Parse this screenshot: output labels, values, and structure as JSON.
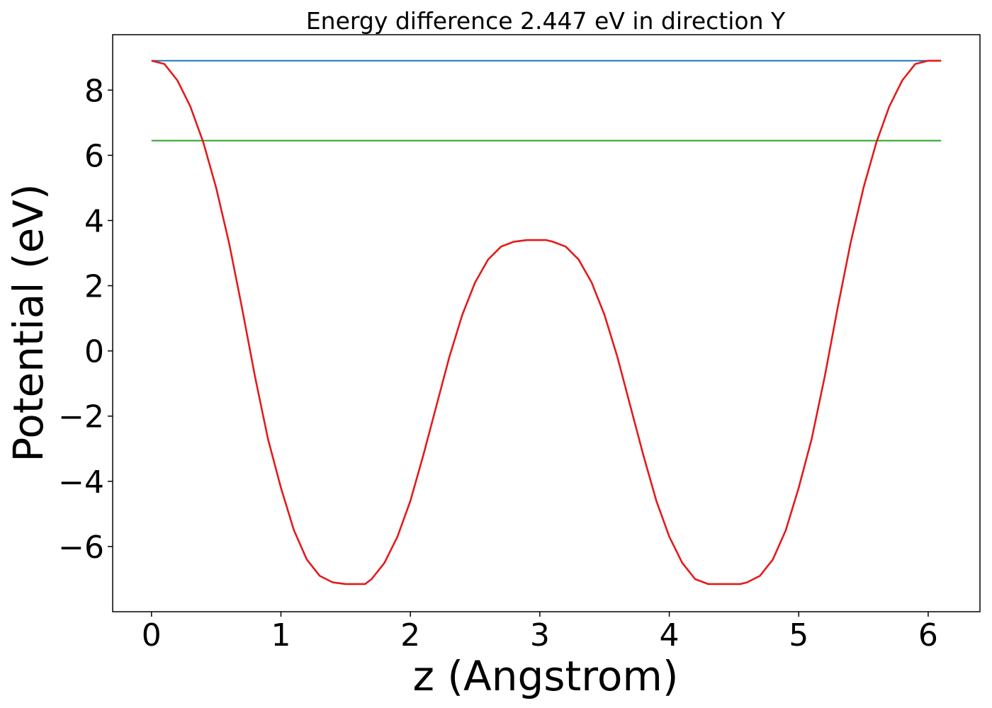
{
  "chart_data": {
    "type": "line",
    "title": "Energy difference 2.447 eV in direction Y",
    "xlabel": "z (Angstrom)",
    "ylabel": "Potential (eV)",
    "xlim": [
      -0.3,
      6.4
    ],
    "ylim": [
      -8.0,
      9.7
    ],
    "xticks": [
      0,
      1,
      2,
      3,
      4,
      5,
      6
    ],
    "xtick_labels": [
      "0",
      "1",
      "2",
      "3",
      "4",
      "5",
      "6"
    ],
    "yticks": [
      -6,
      -4,
      -2,
      0,
      2,
      4,
      6,
      8
    ],
    "ytick_labels": [
      "−6",
      "−4",
      "−2",
      "0",
      "2",
      "4",
      "6",
      "8"
    ],
    "grid": false,
    "series": [
      {
        "color": "#1f77b4",
        "x": [
          0.0,
          6.1
        ],
        "y": [
          8.9,
          8.9
        ]
      },
      {
        "color": "#2ca02c",
        "x": [
          0.0,
          6.1
        ],
        "y": [
          6.45,
          6.45
        ]
      },
      {
        "color": "#e41a1c",
        "x": [
          0.0,
          0.1,
          0.2,
          0.3,
          0.4,
          0.5,
          0.6,
          0.7,
          0.8,
          0.9,
          1.0,
          1.1,
          1.2,
          1.3,
          1.4,
          1.5,
          1.6,
          1.65,
          1.7,
          1.8,
          1.9,
          2.0,
          2.1,
          2.2,
          2.3,
          2.4,
          2.5,
          2.6,
          2.7,
          2.8,
          2.9,
          3.0,
          3.05,
          3.1,
          3.2,
          3.3,
          3.4,
          3.5,
          3.6,
          3.7,
          3.8,
          3.9,
          4.0,
          4.1,
          4.2,
          4.3,
          4.4,
          4.5,
          4.55,
          4.6,
          4.7,
          4.8,
          4.9,
          5.0,
          5.1,
          5.2,
          5.3,
          5.4,
          5.5,
          5.6,
          5.7,
          5.8,
          5.9,
          6.0,
          6.1
        ],
        "y": [
          8.9,
          8.8,
          8.3,
          7.5,
          6.4,
          5.0,
          3.3,
          1.3,
          -0.8,
          -2.7,
          -4.2,
          -5.5,
          -6.4,
          -6.9,
          -7.1,
          -7.15,
          -7.15,
          -7.15,
          -7.0,
          -6.5,
          -5.7,
          -4.6,
          -3.2,
          -1.7,
          -0.2,
          1.1,
          2.1,
          2.8,
          3.2,
          3.35,
          3.4,
          3.4,
          3.4,
          3.35,
          3.2,
          2.8,
          2.1,
          1.1,
          -0.2,
          -1.7,
          -3.2,
          -4.6,
          -5.7,
          -6.5,
          -7.0,
          -7.15,
          -7.15,
          -7.15,
          -7.15,
          -7.1,
          -6.9,
          -6.4,
          -5.5,
          -4.2,
          -2.7,
          -0.8,
          1.3,
          3.3,
          5.0,
          6.4,
          7.5,
          8.3,
          8.8,
          8.9,
          8.9
        ]
      }
    ]
  }
}
